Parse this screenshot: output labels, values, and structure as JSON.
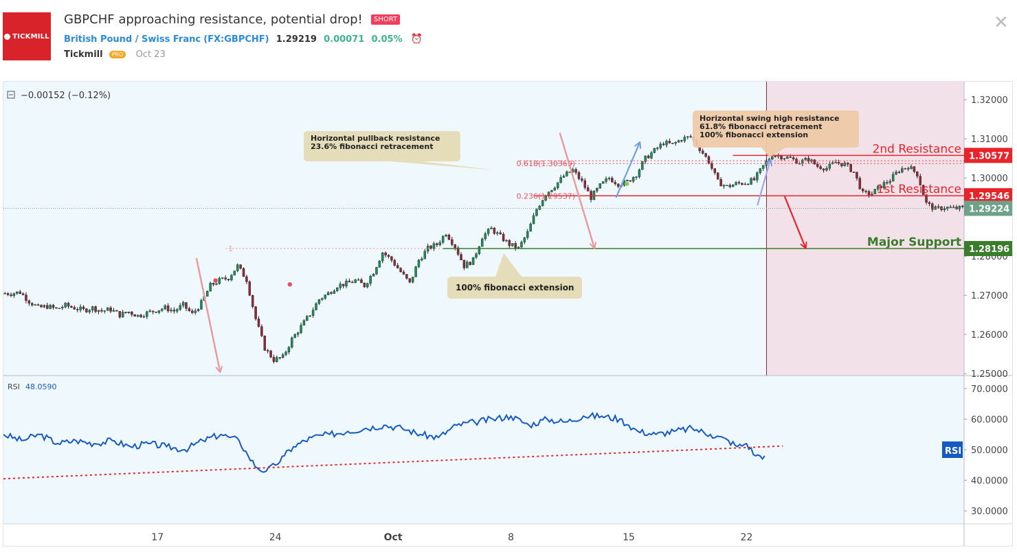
{
  "header": {
    "logo_text": "TICKMILL",
    "title": "GBPCHF approaching resistance, potential drop!",
    "badge": "SHORT",
    "symbol_name": "British Pound / Swiss Franc",
    "symbol_code": "(FX:GBPCHF)",
    "price": "1.29219",
    "change": "0.00071",
    "change_pct": "0.05%",
    "author": "Tickmill",
    "author_badge": "PRO",
    "date": "Oct 23",
    "alarm_icon": "alarm-clock-icon",
    "close_icon": "close-icon"
  },
  "legend": {
    "collapse_icon": "minus-square-icon",
    "text": "−0.00152 (−0.12%)"
  },
  "colors": {
    "bg_chart": "#eff8fc",
    "bg_zone": "#f2e1e8",
    "up": "#1e8c5a",
    "down": "#8c2a3a",
    "resistance": "#e8232a",
    "support": "#3a7d2c",
    "current": "#6fa389",
    "annotation": "#e4dbb5",
    "annotation2": "#edc9a8",
    "rsi": "#1559c2"
  },
  "annotations": {
    "pullback": [
      "Horizontal pullback resistance",
      "23.6% fibonacci retracement"
    ],
    "swing_high": [
      "Horizontal swing high resistance",
      "61.8% fibonacci retracement",
      "100% fibonacci extension"
    ],
    "extension": "100% fibonacci extension",
    "fib_618": "0.618(1.30369)",
    "fib_236": "0.236(1.29537)",
    "fib_1": "1"
  },
  "levels": {
    "second_resistance": {
      "label": "2nd Resistance",
      "value": "1.30577"
    },
    "first_resistance": {
      "label": "1st Resistance",
      "value": "1.29546"
    },
    "current": {
      "value": "1.29224"
    },
    "major_support": {
      "label": "Major Support",
      "value": "1.28196"
    }
  },
  "rsi": {
    "label": "RSI",
    "value": "48.0590",
    "tag": "RSI"
  },
  "chart_data": [
    {
      "type": "line",
      "title": "",
      "yticks": [
        "1.32000",
        "1.31000",
        "1.30000",
        "1.28000",
        "1.27000",
        "1.26000",
        "1.25000"
      ],
      "ylim": [
        1.2495,
        1.3225
      ],
      "xlim": [
        0,
        106
      ],
      "x_ticks": [
        {
          "x": 17,
          "label": "17"
        },
        {
          "x": 30,
          "label": "24"
        },
        {
          "x": 43,
          "label": "Oct"
        },
        {
          "x": 56,
          "label": "8"
        },
        {
          "x": 69,
          "label": "15"
        },
        {
          "x": 82,
          "label": "22"
        }
      ],
      "series": [
        {
          "close": [
            1.2705,
            1.2708,
            1.2685,
            1.2668,
            1.2672,
            1.2665,
            1.2674,
            1.2668,
            1.2662,
            1.2668,
            1.266,
            1.2664,
            1.265,
            1.2658,
            1.2648,
            1.2655,
            1.2662,
            1.2668,
            1.266,
            1.2675,
            1.2652,
            1.268,
            1.2725,
            1.2738,
            1.2745,
            1.2775,
            1.274,
            1.264,
            1.2565,
            1.2535,
            1.2542,
            1.2588,
            1.262,
            1.2652,
            1.269,
            1.2705,
            1.2725,
            1.273,
            1.2738,
            1.2725,
            1.276,
            1.281,
            1.279,
            1.276,
            1.273,
            1.279,
            1.282,
            1.283,
            1.286,
            1.2825,
            1.2775,
            1.279,
            1.285,
            1.287,
            1.285,
            1.283,
            1.282,
            1.286,
            1.292,
            1.296,
            1.298,
            1.3005,
            1.302,
            1.299,
            1.295,
            1.298,
            1.3,
            1.2985,
            1.299,
            1.301,
            1.305,
            1.307,
            1.309,
            1.3085,
            1.31,
            1.3105,
            1.3075,
            1.3042,
            1.299,
            1.2978,
            1.2985,
            1.2988,
            1.2995,
            1.303,
            1.306,
            1.3055,
            1.305,
            1.304,
            1.3048,
            1.303,
            1.3025,
            1.304,
            1.3035,
            1.3015,
            1.296,
            1.296,
            1.298,
            1.2995,
            1.302,
            1.303,
            1.301,
            1.2935,
            1.292,
            1.2925,
            1.2922,
            1.2923,
            1.2922
          ]
        }
      ]
    },
    {
      "type": "line",
      "title": "RSI",
      "yticks": [
        "70.0000",
        "60.0000",
        "50.0000",
        "40.0000",
        "30.0000"
      ],
      "ylim": [
        28,
        72
      ],
      "x": [
        0,
        2,
        4,
        6,
        8,
        10,
        12,
        14,
        16,
        18,
        20,
        22,
        24,
        25,
        26,
        27,
        28,
        29,
        30,
        31,
        32,
        34,
        36,
        38,
        40,
        42,
        44,
        46,
        48,
        50,
        52,
        54,
        56,
        58,
        60,
        62,
        64,
        66,
        68,
        69,
        70,
        72,
        74,
        76,
        78,
        80,
        81,
        82,
        83,
        84
      ],
      "values": [
        55,
        53,
        55,
        52,
        53,
        52,
        53,
        51,
        52,
        51,
        50,
        53,
        55,
        54,
        53,
        48,
        44,
        43,
        45,
        48,
        51,
        54,
        55,
        56,
        57,
        58,
        57,
        55,
        54,
        58,
        59,
        60,
        61,
        58,
        60,
        59,
        61,
        61,
        60,
        58,
        56,
        55,
        56,
        57,
        55,
        53,
        51,
        52,
        48,
        48
      ],
      "trendline": {
        "x": [
          0,
          86
        ],
        "values": [
          40.5,
          51.2
        ]
      }
    }
  ]
}
